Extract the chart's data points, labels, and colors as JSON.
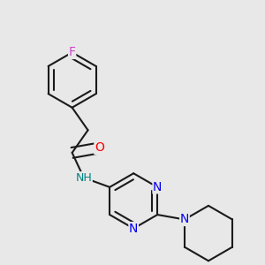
{
  "background_color": "#e8e8e8",
  "bond_color": "#1a1a1a",
  "bond_width": 1.5,
  "atom_colors": {
    "F": "#cc44cc",
    "O": "#ff0000",
    "N_amide": "#008080",
    "N_ring": "#0000ee"
  },
  "font_size": 10,
  "xlim": [
    0.0,
    1.0
  ],
  "ylim": [
    0.0,
    1.0
  ]
}
